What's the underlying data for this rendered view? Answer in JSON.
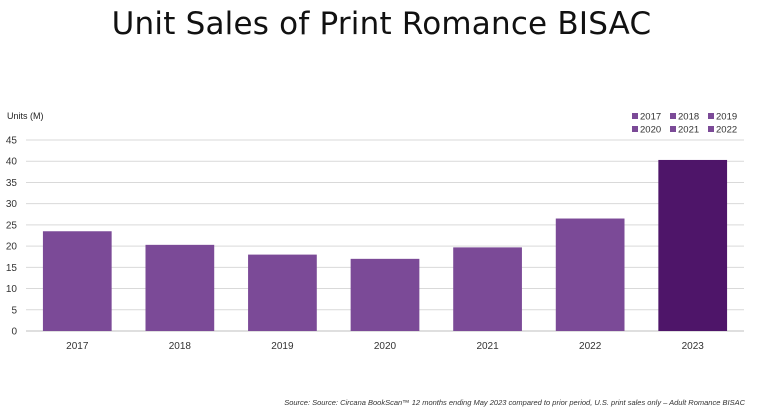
{
  "chart_data": {
    "type": "bar",
    "title": "Unit Sales of Print Romance BISAC",
    "ylabel": "Units (M)",
    "xlabel": "",
    "categories": [
      "2017",
      "2018",
      "2019",
      "2020",
      "2021",
      "2022",
      "2023"
    ],
    "values": [
      23.5,
      20.3,
      18.0,
      17.0,
      19.7,
      26.5,
      40.3
    ],
    "ylim": [
      0,
      45
    ],
    "yticks": [
      "0",
      "5",
      "10",
      "15",
      "20",
      "25",
      "30",
      "35",
      "40",
      "45"
    ],
    "grid": true,
    "legend_position": "top-right",
    "legend": [
      "2017",
      "2018",
      "2019",
      "2020",
      "2021",
      "2022"
    ],
    "colors": {
      "bar": "#7b4a97",
      "highlight_bar": "#4e1569",
      "legend": "#7b4a97",
      "grid": "#d9d9d9"
    },
    "highlight_category": "2023"
  },
  "source_note": "Source: Source: Circana BookScan™ 12 months ending May 2023 compared to prior period, U.S. print sales only – Adult Romance BISAC"
}
